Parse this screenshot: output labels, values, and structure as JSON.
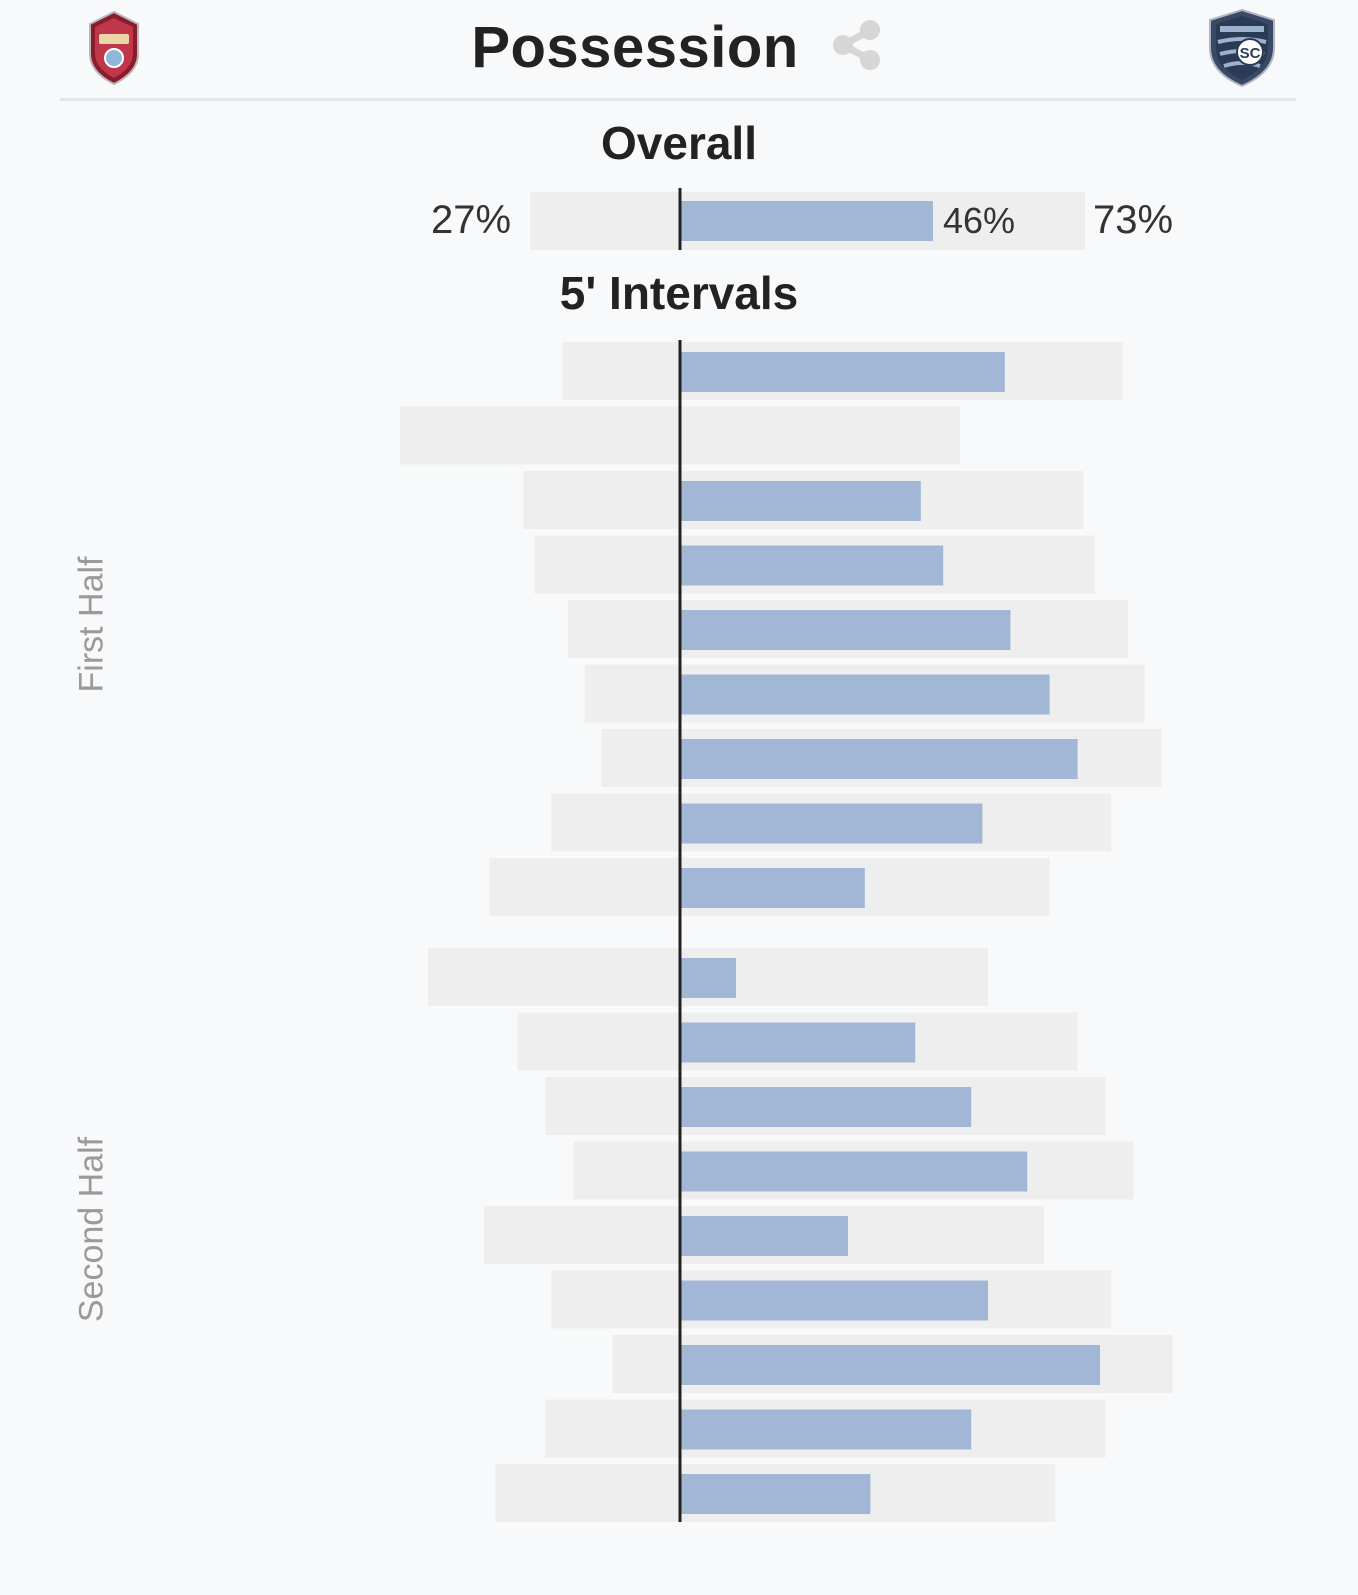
{
  "header": {
    "title": "Possession",
    "home_logo": "colorado-rapids-crest",
    "away_logo": "sporting-kc-crest",
    "share_icon": "share-icon"
  },
  "overall": {
    "label": "Overall",
    "home_pct_label": "27%",
    "mid_pct_label": "46%",
    "away_pct_label": "73%"
  },
  "intervals": {
    "label": "5' Intervals",
    "first_half_label": "First Half",
    "second_half_label": "Second Half"
  },
  "colors": {
    "background": "#f8f9fb",
    "track": "#eeeeee",
    "bar": "#a2b6d5",
    "axis": "#222222",
    "half_label": "#9a9a9a"
  },
  "chart_data": {
    "type": "bar",
    "orientation": "horizontal-diverging",
    "overall": {
      "home": 27,
      "away": 73,
      "bar": 46
    },
    "series": [
      {
        "name": "First Half",
        "rows": [
          {
            "left": 21,
            "right": 79,
            "bar": 58
          },
          {
            "left": 50,
            "right": 50,
            "bar": 0
          },
          {
            "left": 28,
            "right": 72,
            "bar": 43
          },
          {
            "left": 26,
            "right": 74,
            "bar": 47
          },
          {
            "left": 20,
            "right": 80,
            "bar": 59
          },
          {
            "left": 17,
            "right": 83,
            "bar": 66
          },
          {
            "left": 14,
            "right": 86,
            "bar": 71
          },
          {
            "left": 23,
            "right": 77,
            "bar": 54
          },
          {
            "left": 34,
            "right": 66,
            "bar": 33
          }
        ]
      },
      {
        "name": "Second Half",
        "rows": [
          {
            "left": 45,
            "right": 55,
            "bar": 10
          },
          {
            "left": 29,
            "right": 71,
            "bar": 42
          },
          {
            "left": 24,
            "right": 76,
            "bar": 52
          },
          {
            "left": 19,
            "right": 81,
            "bar": 62
          },
          {
            "left": 35,
            "right": 65,
            "bar": 30
          },
          {
            "left": 23,
            "right": 77,
            "bar": 55
          },
          {
            "left": 12,
            "right": 88,
            "bar": 75
          },
          {
            "left": 24,
            "right": 76,
            "bar": 52
          },
          {
            "left": 33,
            "right": 67,
            "bar": 34
          }
        ]
      }
    ]
  }
}
